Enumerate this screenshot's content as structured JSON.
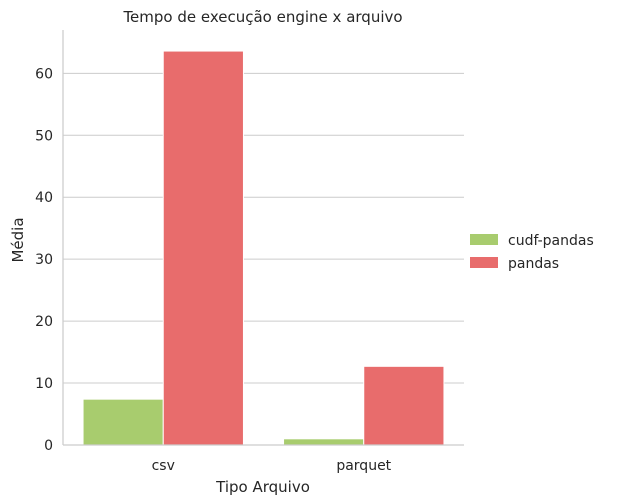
{
  "chart_data": {
    "type": "bar",
    "title": "Tempo de execução engine x arquivo",
    "xlabel": "Tipo Arquivo",
    "ylabel": "Média",
    "categories": [
      "csv",
      "parquet"
    ],
    "series": [
      {
        "name": "cudf-pandas",
        "values": [
          7.4,
          1.0
        ],
        "color": "#a8cc6e"
      },
      {
        "name": "pandas",
        "values": [
          63.6,
          12.7
        ],
        "color": "#e86c6c"
      }
    ],
    "ylim": [
      0,
      67
    ],
    "yticks": [
      0,
      10,
      20,
      30,
      40,
      50,
      60
    ],
    "grid": "horizontal",
    "legend_position": "right"
  }
}
